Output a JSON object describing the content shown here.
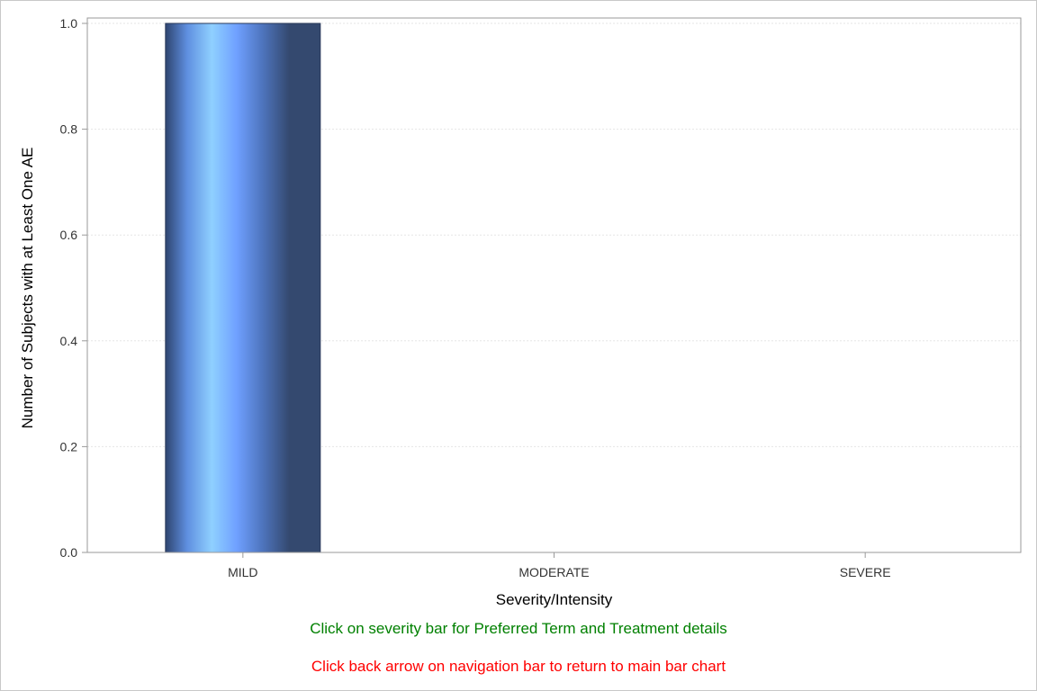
{
  "chart_data": {
    "type": "bar",
    "categories": [
      "MILD",
      "MODERATE",
      "SEVERE"
    ],
    "values": [
      1.0,
      0.0,
      0.0
    ],
    "xlabel": "Severity/Intensity",
    "ylabel": "Number of Subjects with at Least One AE",
    "ylim": [
      0,
      1.0
    ],
    "yticks": [
      "0.0",
      "0.2",
      "0.4",
      "0.6",
      "0.8",
      "1.0"
    ],
    "grid": true,
    "colors": {
      "bar_dark": "#34496f",
      "bar_light": "#8fd0ff",
      "bar_mid": "#6fa0ff"
    }
  },
  "notes": {
    "line1": {
      "text": "Click on severity bar for Preferred Term and Treatment details",
      "color": "#008000"
    },
    "line2": {
      "text": "Click back arrow on navigation bar to return to main bar chart",
      "color": "#ff0000"
    }
  }
}
